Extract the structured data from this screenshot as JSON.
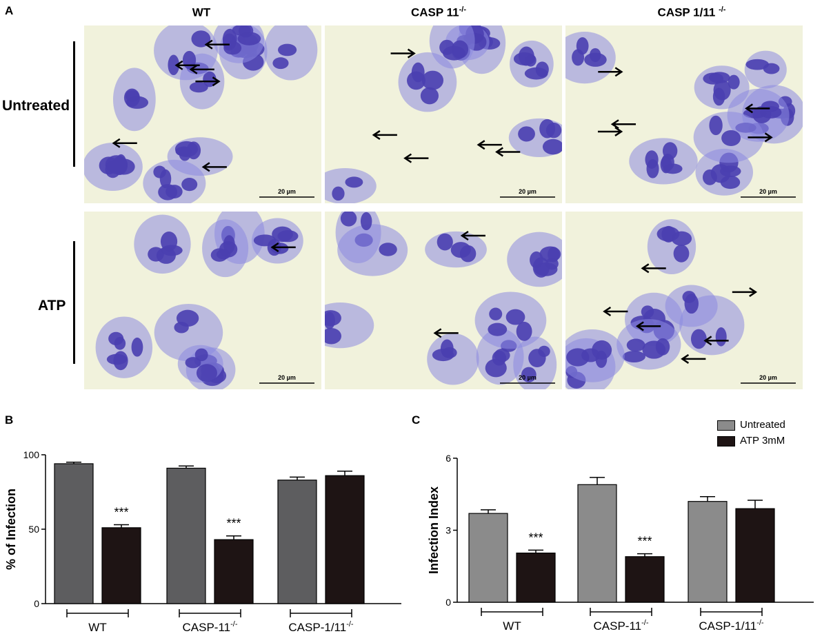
{
  "panels": {
    "a_letter": "A",
    "b_letter": "B",
    "c_letter": "C"
  },
  "micrographs": {
    "columns": [
      {
        "name": "WT",
        "sup": ""
      },
      {
        "name": "CASP 11",
        "sup": "-/-"
      },
      {
        "name": "CASP 1/11 ",
        "sup": "-/-"
      }
    ],
    "rows": [
      "Untreated",
      "ATP"
    ],
    "scale_bar_label": "20 µm",
    "background_color": "#f1f2dc",
    "stain_color": "#4a3fb0"
  },
  "legend": {
    "items": [
      {
        "label": "Untreated",
        "color": "#8b8b8b"
      },
      {
        "label": "ATP 3mM",
        "color": "#1e1414"
      }
    ]
  },
  "chart_data": [
    {
      "type": "bar",
      "panel": "B",
      "ylabel": "% of Infection",
      "ylim": [
        0,
        100
      ],
      "yticks": [
        0,
        50,
        100
      ],
      "groups": [
        {
          "label": "WT",
          "sup": ""
        },
        {
          "label": "CASP-11",
          "sup": "-/-"
        },
        {
          "label": "CASP-1/11",
          "sup": "-/-"
        }
      ],
      "series": [
        {
          "name": "Untreated",
          "color": "#5d5d5f",
          "values": [
            94,
            91,
            83
          ],
          "errors": [
            1,
            1.5,
            2
          ]
        },
        {
          "name": "ATP 3mM",
          "color": "#1e1414",
          "values": [
            51,
            43,
            86
          ],
          "errors": [
            2,
            2.5,
            3
          ]
        }
      ],
      "significance": [
        {
          "group": 0,
          "series": 1,
          "label": "***"
        },
        {
          "group": 1,
          "series": 1,
          "label": "***"
        }
      ]
    },
    {
      "type": "bar",
      "panel": "C",
      "ylabel": "Infection Index",
      "ylim": [
        0,
        6
      ],
      "yticks": [
        0,
        3,
        6
      ],
      "groups": [
        {
          "label": "WT",
          "sup": ""
        },
        {
          "label": "CASP-11",
          "sup": "-/-"
        },
        {
          "label": "CASP-1/11",
          "sup": "-/-"
        }
      ],
      "series": [
        {
          "name": "Untreated",
          "color": "#8b8b8b",
          "values": [
            3.7,
            4.9,
            4.2
          ],
          "errors": [
            0.15,
            0.3,
            0.2
          ]
        },
        {
          "name": "ATP 3mM",
          "color": "#1e1414",
          "values": [
            2.05,
            1.9,
            3.9
          ],
          "errors": [
            0.12,
            0.12,
            0.35
          ]
        }
      ],
      "significance": [
        {
          "group": 0,
          "series": 1,
          "label": "***"
        },
        {
          "group": 1,
          "series": 1,
          "label": "***"
        }
      ]
    }
  ]
}
